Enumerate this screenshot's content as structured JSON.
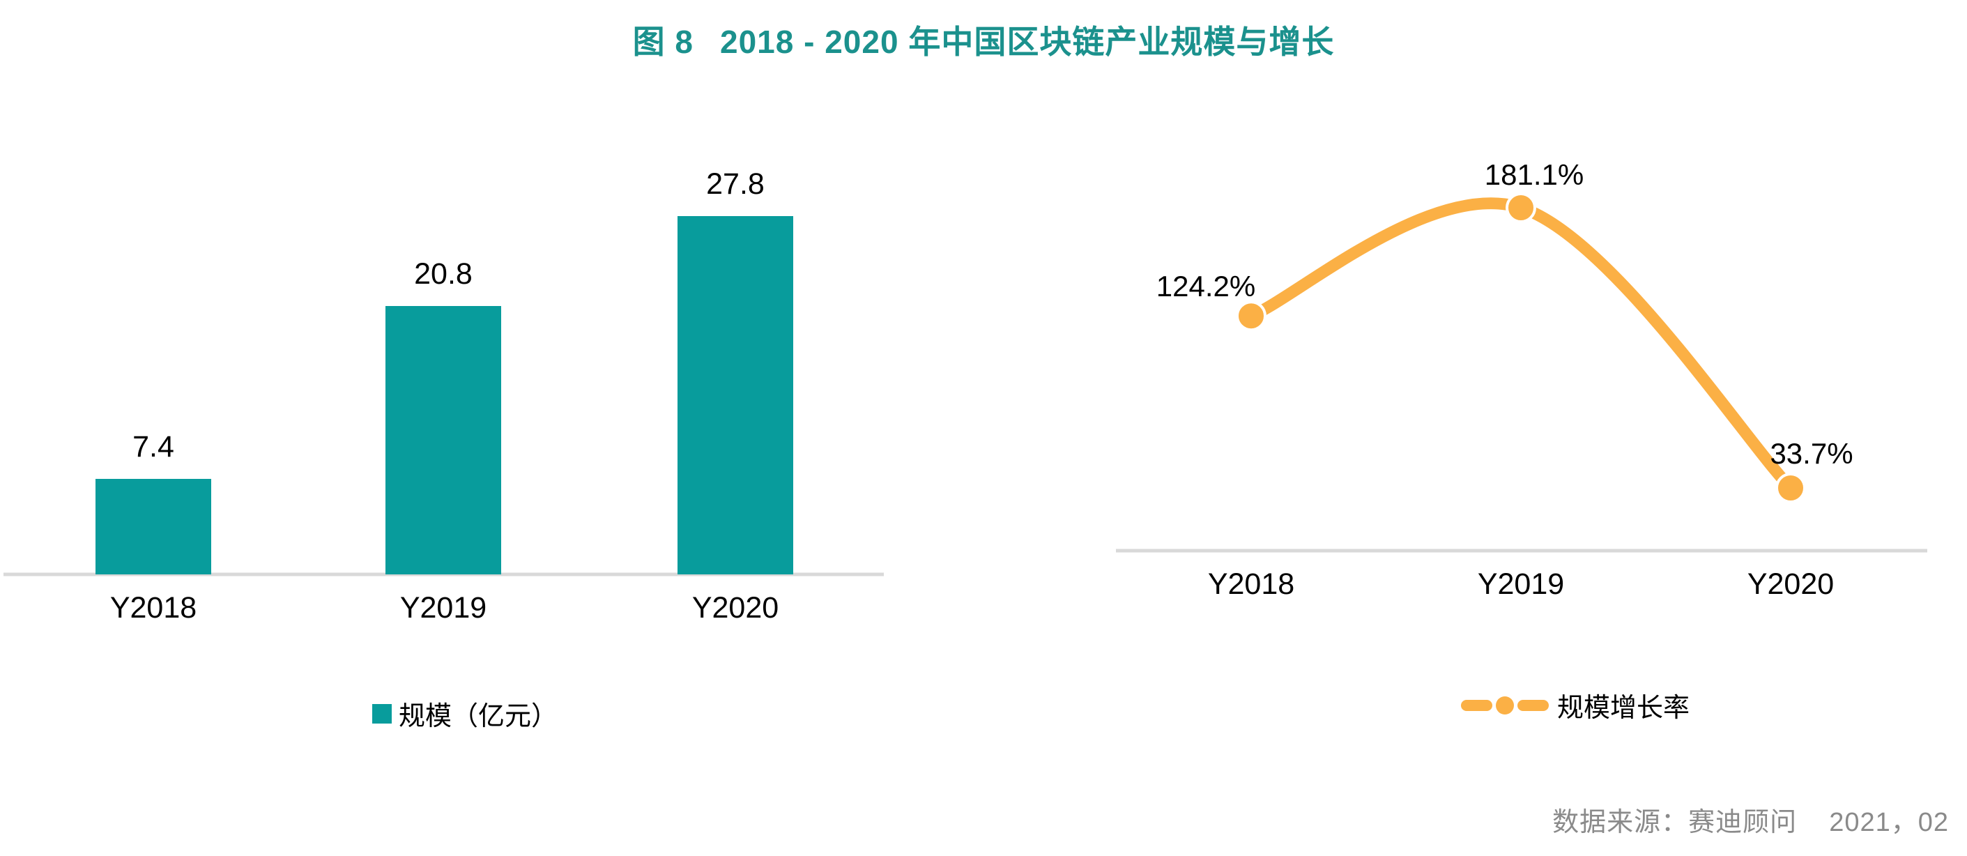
{
  "page_title": {
    "figure_label": "图 8",
    "title_text": "2018 - 2020 年中国区块链产业规模与增长"
  },
  "colors": {
    "title_teal": "#1B918D",
    "bar_teal": "#089C9C",
    "line_orange": "#FBB045",
    "axis_gray": "#D9D9D9",
    "label_black": "#000000",
    "source_gray": "#8A8A8A"
  },
  "chart_data": [
    {
      "type": "bar",
      "series_name": "规模（亿元）",
      "categories": [
        "Y2018",
        "Y2019",
        "Y2020"
      ],
      "values": [
        7.4,
        20.8,
        27.8
      ],
      "value_labels": [
        "7.4",
        "20.8",
        "27.8"
      ],
      "ylim": [
        0,
        30
      ],
      "grid": false,
      "legend_position": "bottom",
      "color": "#089C9C"
    },
    {
      "type": "line",
      "series_name": "规模增长率",
      "categories": [
        "Y2018",
        "Y2019",
        "Y2020"
      ],
      "values": [
        124.2,
        181.1,
        33.7
      ],
      "value_labels": [
        "124.2%",
        "181.1%",
        "33.7%"
      ],
      "smooth": true,
      "grid": false,
      "legend_position": "bottom",
      "color": "#FBB045"
    }
  ],
  "source": {
    "label": "数据来源：赛迪顾问",
    "date": "2021，02"
  }
}
